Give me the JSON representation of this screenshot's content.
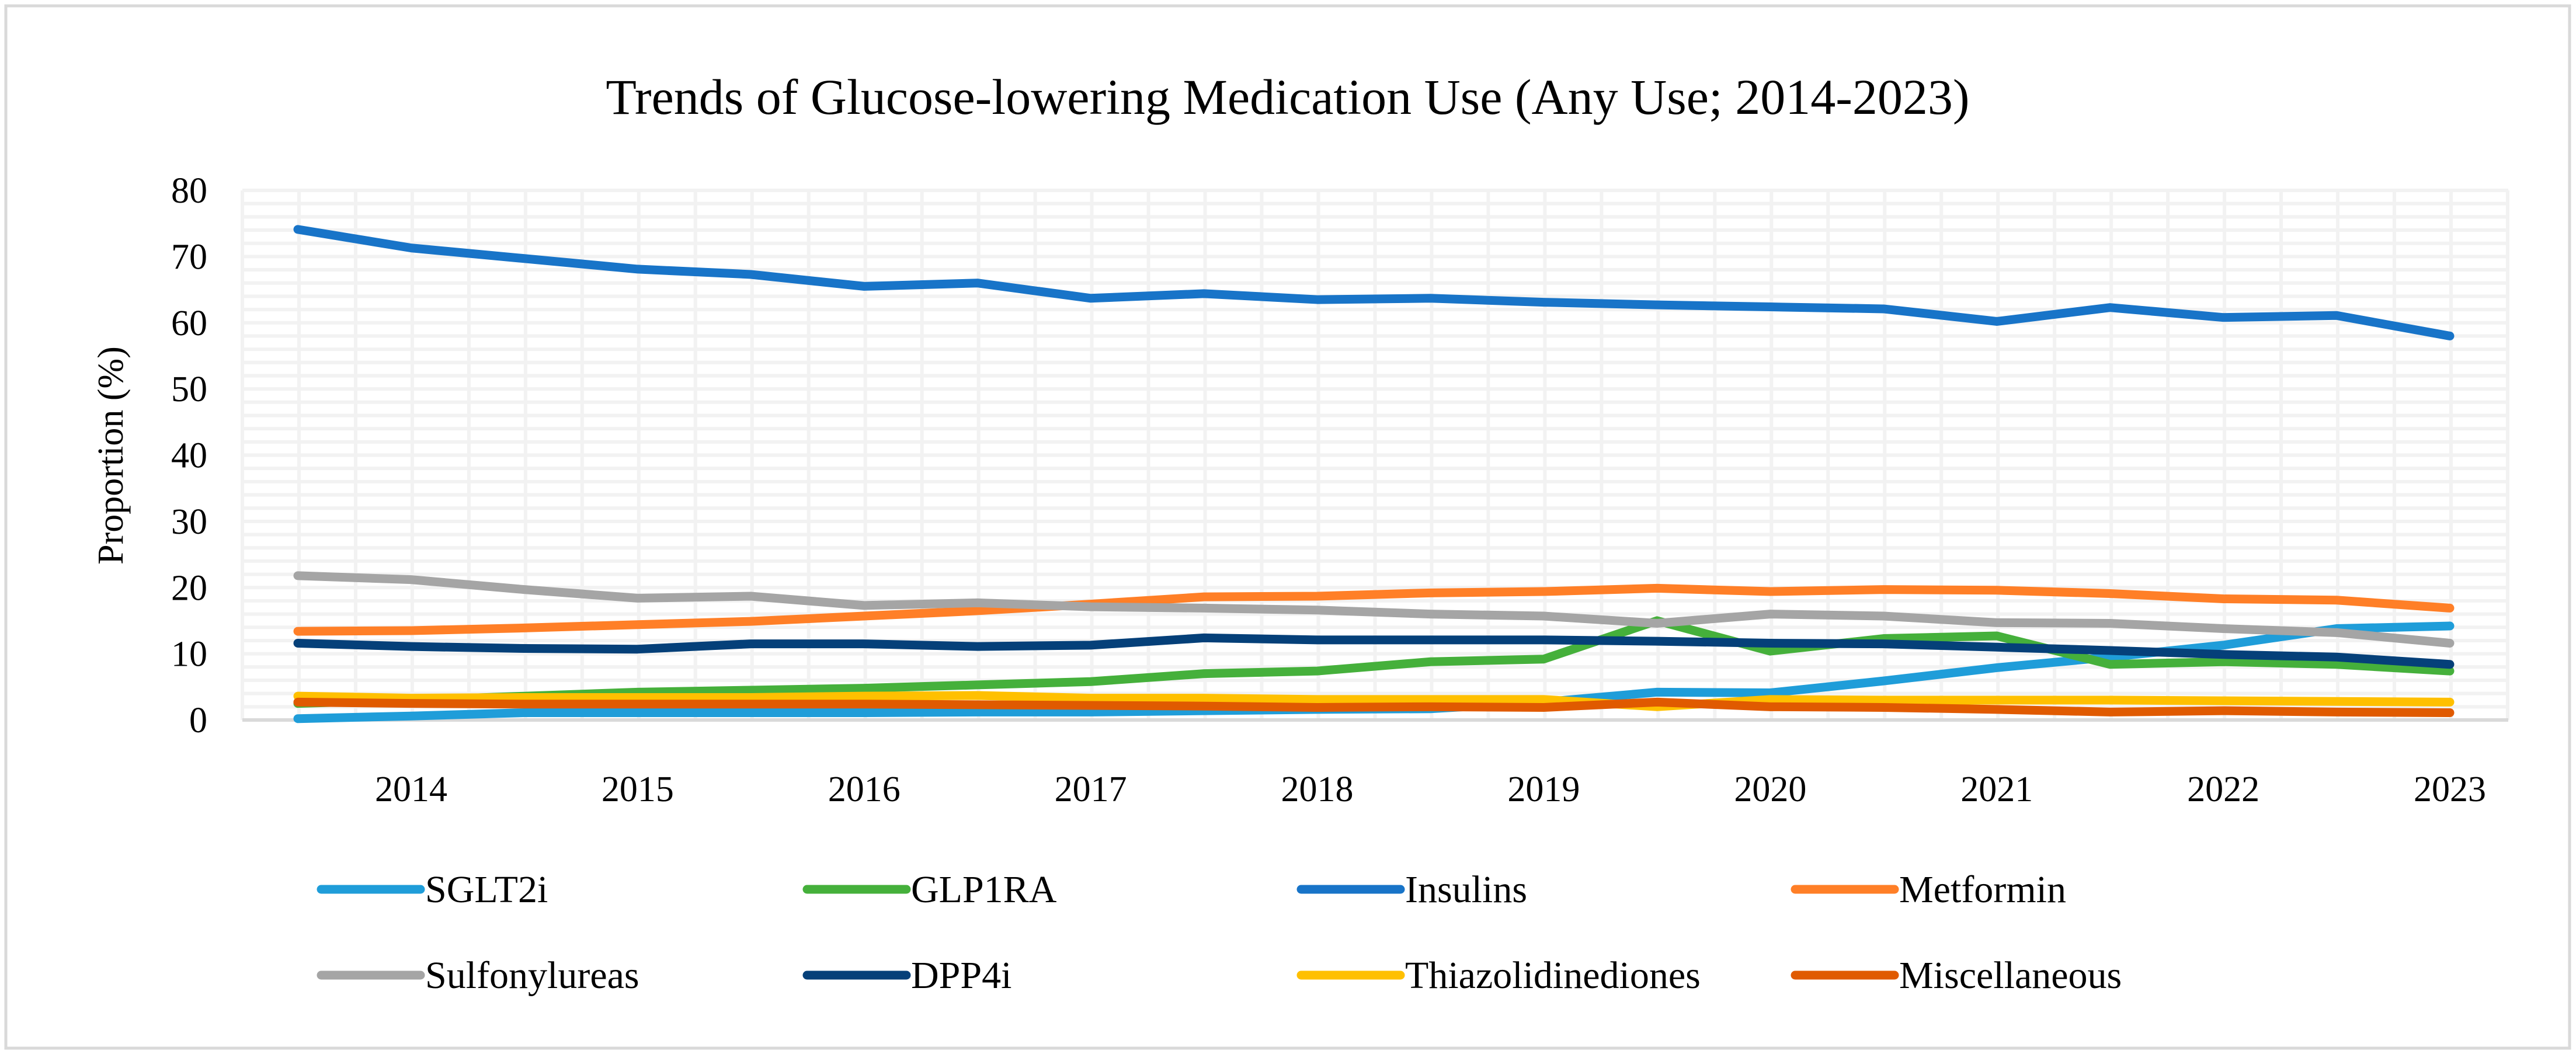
{
  "chart_data": {
    "type": "line",
    "title": "Trends of Glucose-lowering Medication Use (Any Use; 2014-2023)",
    "xlabel": "",
    "ylabel": "Proportion (%)",
    "ylim": [
      0,
      80
    ],
    "yticks": [
      0,
      10,
      20,
      30,
      40,
      50,
      60,
      70,
      80
    ],
    "grid": true,
    "legend_position": "bottom",
    "categories": [
      "",
      "2014",
      "",
      "2015",
      "",
      "2016",
      "",
      "2017",
      "",
      "2018",
      "",
      "2019",
      "",
      "2020",
      "",
      "2021",
      "",
      "2022",
      "",
      "2023"
    ],
    "series": [
      {
        "name": "SGLT2i",
        "color": "#1f9dd9",
        "values": [
          0.2,
          0.6,
          1.1,
          1.1,
          1.1,
          1.1,
          1.2,
          1.2,
          1.4,
          1.6,
          1.7,
          2.7,
          4.2,
          4.1,
          5.9,
          7.9,
          9.5,
          11.3,
          13.8,
          14.2
        ]
      },
      {
        "name": "GLP1RA",
        "color": "#45b03b",
        "values": [
          2.5,
          3.0,
          3.6,
          4.2,
          4.5,
          4.8,
          5.3,
          5.8,
          7.0,
          7.4,
          8.8,
          9.2,
          15.0,
          10.4,
          12.3,
          12.7,
          8.4,
          8.8,
          8.4,
          7.4
        ]
      },
      {
        "name": "Insulins",
        "color": "#1874c8",
        "values": [
          74.1,
          71.3,
          69.7,
          68.1,
          67.3,
          65.5,
          66.0,
          63.7,
          64.4,
          63.5,
          63.7,
          63.1,
          62.7,
          62.4,
          62.1,
          60.2,
          62.3,
          60.8,
          61.1,
          58.0
        ]
      },
      {
        "name": "Metformin",
        "color": "#ff7f27",
        "values": [
          13.4,
          13.5,
          13.9,
          14.4,
          14.9,
          15.7,
          16.5,
          17.5,
          18.6,
          18.7,
          19.2,
          19.4,
          19.9,
          19.4,
          19.7,
          19.6,
          19.1,
          18.3,
          18.1,
          16.9
        ]
      },
      {
        "name": "Sulfonylureas",
        "color": "#a5a5a5",
        "values": [
          21.8,
          21.2,
          19.7,
          18.4,
          18.7,
          17.3,
          17.7,
          17.1,
          16.9,
          16.6,
          16.0,
          15.7,
          14.6,
          16.0,
          15.7,
          14.7,
          14.6,
          13.8,
          13.2,
          11.6
        ]
      },
      {
        "name": "DPP4i",
        "color": "#054079",
        "values": [
          11.6,
          11.1,
          10.8,
          10.7,
          11.5,
          11.5,
          11.1,
          11.3,
          12.4,
          12.1,
          12.1,
          12.1,
          11.9,
          11.6,
          11.5,
          11.0,
          10.5,
          9.9,
          9.5,
          8.4
        ]
      },
      {
        "name": "Thiazolidinediones",
        "color": "#ffc000",
        "values": [
          3.6,
          3.3,
          3.4,
          3.4,
          3.4,
          3.6,
          3.7,
          3.3,
          3.3,
          3.1,
          3.1,
          3.1,
          2.0,
          3.1,
          3.0,
          3.0,
          3.0,
          2.9,
          2.8,
          2.7
        ]
      },
      {
        "name": "Miscellaneous",
        "color": "#e05a00",
        "values": [
          2.7,
          2.5,
          2.4,
          2.4,
          2.4,
          2.4,
          2.3,
          2.2,
          2.1,
          1.9,
          2.0,
          1.9,
          2.7,
          2.0,
          1.9,
          1.6,
          1.2,
          1.4,
          1.2,
          1.1
        ]
      }
    ]
  }
}
